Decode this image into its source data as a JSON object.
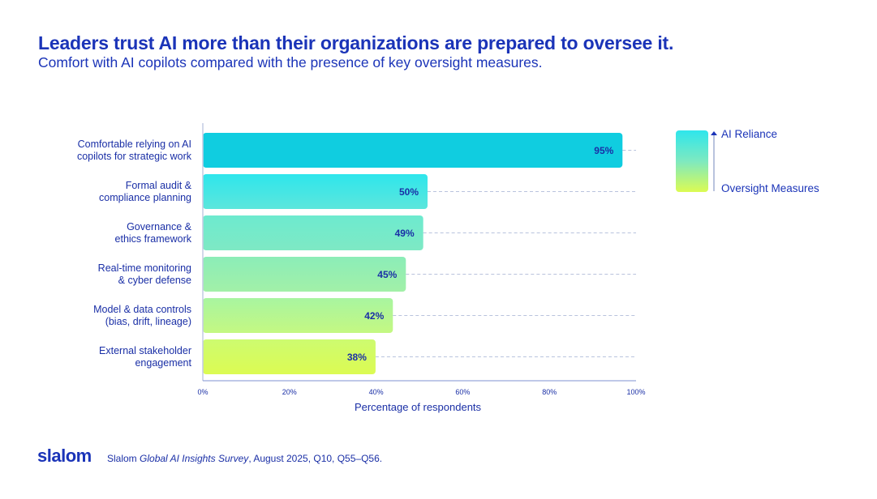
{
  "title": "Leaders trust AI more than their organizations are prepared to oversee it.",
  "subtitle": "Comfort with AI copilots compared with the presence of key oversight measures.",
  "chart_data": {
    "type": "bar",
    "orientation": "horizontal",
    "categories": [
      [
        "Comfortable relying on AI",
        "copilots for strategic work"
      ],
      [
        "Formal audit &",
        "compliance planning"
      ],
      [
        "Governance &",
        "ethics framework"
      ],
      [
        "Real-time monitoring",
        "& cyber defense"
      ],
      [
        "Model & data controls",
        "(bias, drift, lineage)"
      ],
      [
        "External stakeholder",
        "engagement"
      ]
    ],
    "values": [
      95,
      50,
      49,
      45,
      42,
      38
    ],
    "data_labels": [
      "95%",
      "50%",
      "49%",
      "45%",
      "42%",
      "38%"
    ],
    "bar_colors": [
      [
        "#10cde0",
        "#10cde0"
      ],
      [
        "#2ee6ec",
        "#5ce6dc"
      ],
      [
        "#6deacf",
        "#7ee9c4"
      ],
      [
        "#8bedb8",
        "#a2f0a8"
      ],
      [
        "#a8f5a0",
        "#c4f882"
      ],
      [
        "#cdfb70",
        "#dcfb52"
      ]
    ],
    "xlabel": "Percentage of respondents",
    "xlim": [
      0,
      100
    ],
    "xticks": [
      "0%",
      "20%",
      "40%",
      "60%",
      "80%",
      "100%"
    ],
    "grid": "dashed guide lines per bar",
    "legend": {
      "position": "top-right",
      "top_label": "AI Reliance",
      "bottom_label": "Oversight Measures",
      "gradient": [
        "#2ee6ec",
        "#dcfb52"
      ]
    }
  },
  "footer": {
    "logo": "slalom",
    "source_prefix": "Slalom ",
    "source_italic": "Global AI Insights Survey",
    "source_suffix": ", August 2025, Q10, Q55–Q56."
  }
}
